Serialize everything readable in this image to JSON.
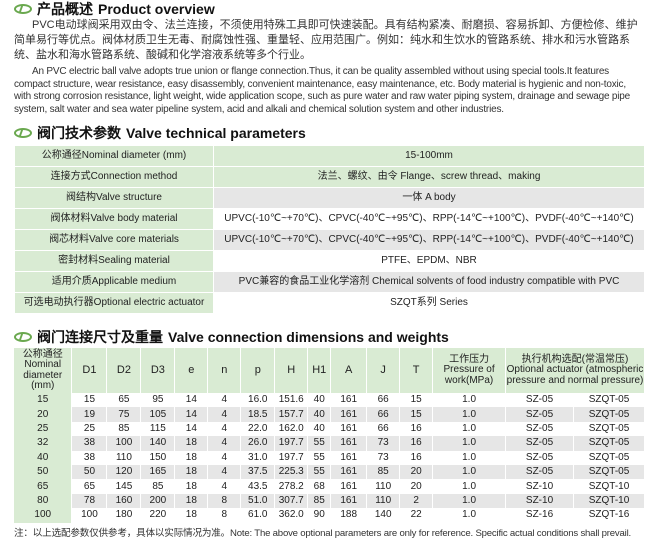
{
  "overview": {
    "title_cn": "产品概述",
    "title_en": "Product overview",
    "text_cn": "PVC电动球阀采用双由令、法兰连接，不须使用特殊工具即可快速装配。具有结构紧凑、耐磨损、容易拆卸、方便检修、维护简单易行等优点。阀体材质卫生无毒、耐腐蚀性强、重量轻、应用范围广。例如：纯水和生饮水的管路系统、排水和污水管路系统、盐水和海水管路系统、酸碱和化学溶液系统等多个行业。",
    "text_en": "An PVC electric ball valve adopts true union or flange connection.Thus, it can be quality assembled without using special tools.It features compact structure, wear resistance, easy disassembly, convenient maintenance, easy maintenance, etc. Body material is  hygienic and non-toxic, with strong corrosion resistance, light weight, wide application scope, such as pure water and raw water piping system, drainage and sewage pipe system, salt water and sea water pipeline system, acid and alkali and chemical solution system and other industries."
  },
  "params": {
    "title_cn": "阀门技术参数",
    "title_en": "Valve technical parameters",
    "rows": [
      {
        "label": "公称通径Nominal diameter (mm)",
        "value": "15-100mm"
      },
      {
        "label": "连接方式Connection method",
        "value": "法兰、螺纹、由令 Flange、screw thread、making"
      },
      {
        "label": "阀结构Valve structure",
        "value": "一体 A body"
      },
      {
        "label": "阀体材料Valve body material",
        "value": "UPVC(-10℃~+70℃)、CPVC(-40℃~+95℃)、RPP(-14℃~+100℃)、PVDF(-40℃~+140℃)"
      },
      {
        "label": "阀芯材料Valve core materials",
        "value": "UPVC(-10℃~+70℃)、CPVC(-40℃~+95℃)、RPP(-14℃~+100℃)、PVDF(-40℃~+140℃)"
      },
      {
        "label": "密封材料Sealing material",
        "value": "PTFE、EPDM、NBR"
      },
      {
        "label": "适用介质Applicable medium",
        "value": "PVC兼容的食品工业化学溶剂  Chemical solvents of food industry compatible with PVC"
      },
      {
        "label": "可选电动执行器Optional electric actuator",
        "value": "SZQT系列 Series"
      }
    ]
  },
  "dims": {
    "title_cn": "阀门连接尺寸及重量",
    "title_en": "Valve connection dimensions and weights",
    "headers": [
      "公称通径 Nominal diameter (mm)",
      "D1",
      "D2",
      "D3",
      "e",
      "n",
      "p",
      "H",
      "H1",
      "A",
      "J",
      "T",
      "工作压力 Pressure of work(MPa)",
      "执行机构选配(常温常压) Optional actuator (atmospheric pressure and normal pressure)"
    ],
    "rows": [
      [
        "15",
        "15",
        "65",
        "95",
        "14",
        "4",
        "16.0",
        "151.6",
        "40",
        "161",
        "66",
        "15",
        "1.0",
        "SZ-05",
        "SZQT-05"
      ],
      [
        "20",
        "19",
        "75",
        "105",
        "14",
        "4",
        "18.5",
        "157.7",
        "40",
        "161",
        "66",
        "15",
        "1.0",
        "SZ-05",
        "SZQT-05"
      ],
      [
        "25",
        "25",
        "85",
        "115",
        "14",
        "4",
        "22.0",
        "162.0",
        "40",
        "161",
        "66",
        "16",
        "1.0",
        "SZ-05",
        "SZQT-05"
      ],
      [
        "32",
        "38",
        "100",
        "140",
        "18",
        "4",
        "26.0",
        "197.7",
        "55",
        "161",
        "73",
        "16",
        "1.0",
        "SZ-05",
        "SZQT-05"
      ],
      [
        "40",
        "38",
        "110",
        "150",
        "18",
        "4",
        "31.0",
        "197.7",
        "55",
        "161",
        "73",
        "16",
        "1.0",
        "SZ-05",
        "SZQT-05"
      ],
      [
        "50",
        "50",
        "120",
        "165",
        "18",
        "4",
        "37.5",
        "225.3",
        "55",
        "161",
        "85",
        "20",
        "1.0",
        "SZ-05",
        "SZQT-05"
      ],
      [
        "65",
        "65",
        "145",
        "85",
        "18",
        "4",
        "43.5",
        "278.2",
        "68",
        "161",
        "110",
        "20",
        "1.0",
        "SZ-10",
        "SZQT-10"
      ],
      [
        "80",
        "78",
        "160",
        "200",
        "18",
        "8",
        "51.0",
        "307.7",
        "85",
        "161",
        "110",
        "2",
        "1.0",
        "SZ-10",
        "SZQT-10"
      ],
      [
        "100",
        "100",
        "180",
        "220",
        "18",
        "8",
        "61.0",
        "362.0",
        "90",
        "188",
        "140",
        "22",
        "1.0",
        "SZ-16",
        "SZQT-16"
      ]
    ],
    "note": "注：以上选配参数仅供参考，具体以实际情况为准。Note: The above optional parameters are only for reference. Specific actual conditions shall prevail."
  },
  "colors": {
    "accent": "#6aa84f",
    "cell_green": "#d9ebd3",
    "cell_gray": "#e6e6e6"
  }
}
